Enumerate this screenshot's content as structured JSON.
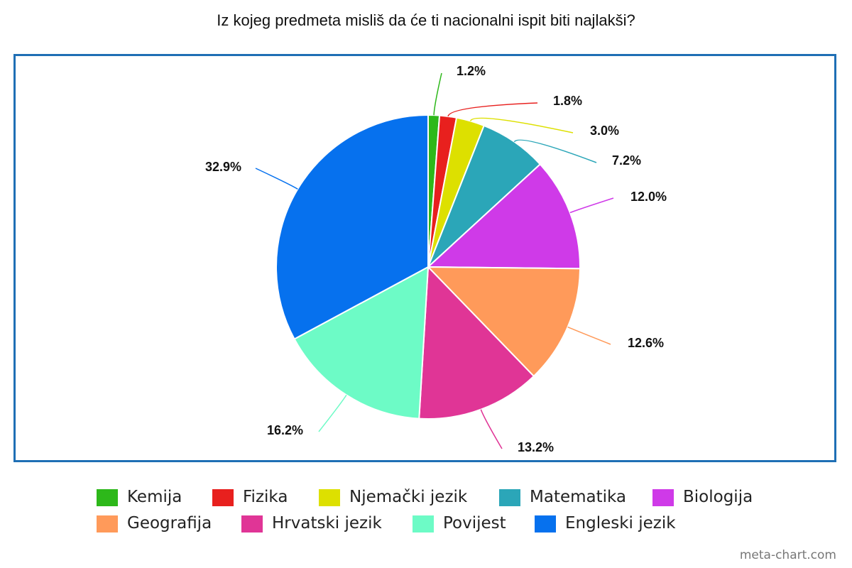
{
  "chart_data": {
    "type": "pie",
    "title": "Iz kojeg predmeta misliš da će ti nacionalni ispit biti najlakši?",
    "slices": [
      {
        "label": "Kemija",
        "value": 1.2,
        "value_label": "1.2%",
        "color": "#2db81a"
      },
      {
        "label": "Fizika",
        "value": 1.8,
        "value_label": "1.8%",
        "color": "#e8201e"
      },
      {
        "label": "Njemački jezik",
        "value": 3.0,
        "value_label": "3.0%",
        "color": "#dde000"
      },
      {
        "label": "Matematika",
        "value": 7.2,
        "value_label": "7.2%",
        "color": "#2ba6b8"
      },
      {
        "label": "Biologija",
        "value": 12.0,
        "value_label": "12.0%",
        "color": "#cf3ae8"
      },
      {
        "label": "Geografija",
        "value": 12.6,
        "value_label": "12.6%",
        "color": "#ff9a5a"
      },
      {
        "label": "Hrvatski jezik",
        "value": 13.2,
        "value_label": "13.2%",
        "color": "#e03596"
      },
      {
        "label": "Povijest",
        "value": 16.2,
        "value_label": "16.2%",
        "color": "#6dfbc6"
      },
      {
        "label": "Engleski jezik",
        "value": 32.9,
        "value_label": "32.9%",
        "color": "#0671ee"
      }
    ],
    "legend_position": "bottom",
    "frame_color": "#1f6fb5"
  },
  "watermark": "meta-chart.com"
}
